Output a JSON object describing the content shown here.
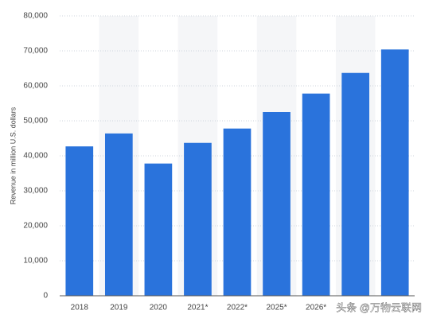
{
  "chart_data": {
    "type": "bar",
    "y_label": "Revenue in million U.S. dollars",
    "categories": [
      "2018",
      "2019",
      "2020",
      "2021*",
      "2022*",
      "2025*",
      "2026*",
      null,
      null
    ],
    "values": [
      42700,
      46400,
      37800,
      43700,
      47800,
      52500,
      57800,
      63700,
      70400
    ],
    "color": "#2a73dc",
    "ylim": [
      0,
      80000
    ],
    "yticks": [
      0,
      {
        "value": 10000,
        "label": "10,000"
      },
      {
        "value": 20000,
        "label": "20,000"
      },
      {
        "value": 30000,
        "label": "30,000"
      },
      {
        "value": 40000,
        "label": "40,000"
      },
      {
        "value": 50000,
        "label": "50,000"
      },
      {
        "value": 60000,
        "label": "60,000"
      },
      {
        "value": 70000,
        "label": "70,000"
      },
      {
        "value": 80000,
        "label": "80,000"
      }
    ],
    "grid": true
  },
  "watermark": "头条 @万物云联网"
}
